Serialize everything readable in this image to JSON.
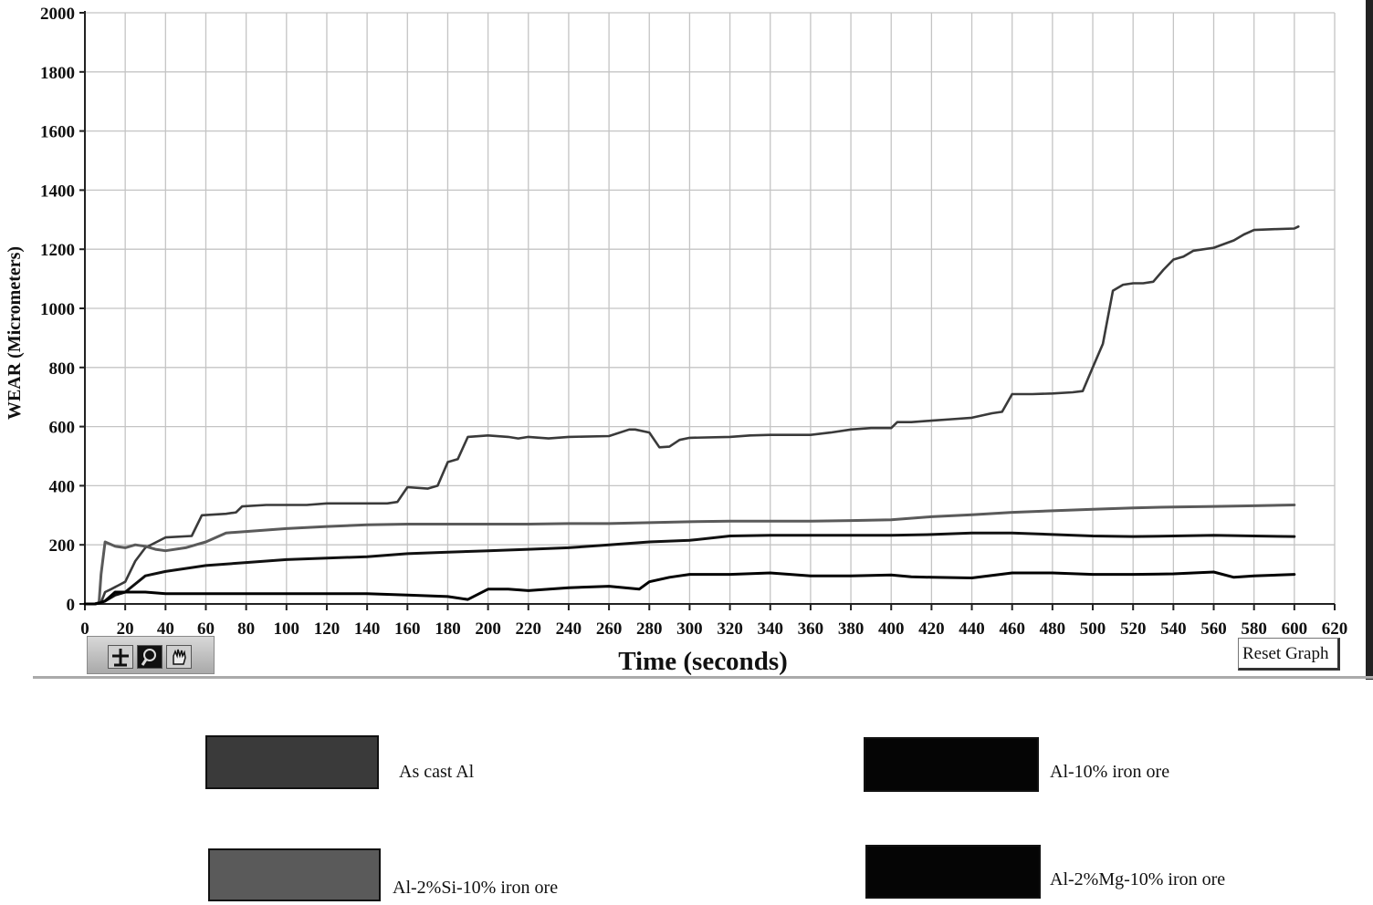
{
  "chart_data": {
    "type": "line",
    "title": "",
    "xlabel": "Time (seconds)",
    "ylabel": "WEAR (Micrometers)",
    "xlim": [
      0,
      620
    ],
    "ylim": [
      0,
      2000
    ],
    "xticks": [
      0,
      20,
      40,
      60,
      80,
      100,
      120,
      140,
      160,
      180,
      200,
      220,
      240,
      260,
      280,
      300,
      320,
      340,
      360,
      380,
      400,
      420,
      440,
      460,
      480,
      500,
      520,
      540,
      560,
      580,
      600,
      620
    ],
    "yticks": [
      0,
      200,
      400,
      600,
      800,
      1000,
      1200,
      1400,
      1600,
      1800,
      2000
    ],
    "grid": true,
    "legend_position": "bottom",
    "series": [
      {
        "name": "As cast Al",
        "color": "#3a3a3a",
        "x": [
          0,
          5,
          8,
          10,
          13,
          20,
          25,
          30,
          40,
          53,
          58,
          70,
          75,
          78,
          90,
          110,
          120,
          130,
          150,
          155,
          160,
          170,
          175,
          180,
          185,
          190,
          200,
          210,
          215,
          220,
          230,
          240,
          260,
          270,
          273,
          280,
          285,
          290,
          295,
          300,
          320,
          330,
          340,
          360,
          370,
          380,
          390,
          400,
          403,
          410,
          420,
          430,
          440,
          450,
          455,
          460,
          470,
          480,
          490,
          495,
          500,
          505,
          510,
          515,
          520,
          525,
          530,
          535,
          540,
          545,
          550,
          560,
          570,
          575,
          580,
          590,
          600,
          602
        ],
        "y": [
          0,
          0,
          5,
          40,
          50,
          75,
          145,
          190,
          225,
          230,
          300,
          305,
          310,
          330,
          335,
          335,
          340,
          340,
          340,
          345,
          395,
          390,
          400,
          480,
          490,
          565,
          570,
          565,
          560,
          565,
          560,
          565,
          568,
          590,
          590,
          580,
          530,
          532,
          555,
          562,
          565,
          570,
          572,
          572,
          580,
          590,
          595,
          595,
          615,
          615,
          620,
          625,
          630,
          645,
          650,
          710,
          710,
          712,
          716,
          720,
          800,
          880,
          1060,
          1080,
          1085,
          1085,
          1090,
          1130,
          1165,
          1175,
          1195,
          1205,
          1230,
          1250,
          1265,
          1268,
          1270,
          1277
        ]
      },
      {
        "name": "Al-10% iron ore",
        "color": "#111111",
        "x": [
          0,
          5,
          8,
          10,
          15,
          20,
          30,
          40,
          60,
          80,
          100,
          120,
          140,
          160,
          180,
          200,
          220,
          240,
          260,
          280,
          300,
          320,
          340,
          360,
          380,
          400,
          420,
          440,
          460,
          480,
          500,
          520,
          540,
          560,
          580,
          600
        ],
        "y": [
          0,
          0,
          5,
          10,
          30,
          40,
          95,
          110,
          130,
          140,
          150,
          155,
          160,
          170,
          175,
          180,
          185,
          190,
          200,
          210,
          215,
          230,
          232,
          232,
          232,
          232,
          235,
          240,
          240,
          235,
          230,
          228,
          230,
          232,
          230,
          228
        ]
      },
      {
        "name": "Al-2%Si-10% iron ore",
        "color": "#5a5a5a",
        "x": [
          0,
          5,
          7,
          8,
          10,
          15,
          20,
          25,
          30,
          35,
          40,
          50,
          55,
          60,
          70,
          80,
          100,
          120,
          140,
          160,
          180,
          200,
          220,
          240,
          260,
          280,
          300,
          320,
          340,
          360,
          380,
          400,
          420,
          440,
          460,
          480,
          500,
          520,
          540,
          560,
          580,
          600
        ],
        "y": [
          0,
          0,
          5,
          100,
          210,
          195,
          190,
          200,
          195,
          185,
          180,
          190,
          200,
          210,
          240,
          245,
          255,
          262,
          268,
          270,
          270,
          270,
          270,
          272,
          272,
          275,
          278,
          280,
          280,
          280,
          282,
          285,
          295,
          302,
          310,
          315,
          320,
          325,
          328,
          330,
          332,
          335
        ]
      },
      {
        "name": "Al-2%Mg-10% iron ore",
        "color": "#000000",
        "x": [
          0,
          5,
          8,
          10,
          15,
          20,
          30,
          40,
          60,
          80,
          100,
          120,
          140,
          160,
          180,
          185,
          190,
          200,
          210,
          220,
          240,
          260,
          275,
          280,
          290,
          295,
          300,
          320,
          340,
          360,
          380,
          400,
          410,
          420,
          440,
          460,
          480,
          500,
          520,
          540,
          560,
          570,
          580,
          600
        ],
        "y": [
          0,
          0,
          5,
          10,
          40,
          40,
          40,
          35,
          35,
          35,
          35,
          35,
          35,
          30,
          25,
          20,
          15,
          50,
          50,
          45,
          55,
          60,
          50,
          75,
          90,
          95,
          100,
          100,
          105,
          95,
          95,
          98,
          92,
          90,
          88,
          105,
          105,
          100,
          100,
          102,
          108,
          90,
          95,
          100
        ]
      }
    ]
  },
  "toolbar": {
    "tools": [
      "crosshair-icon",
      "zoom-icon",
      "pan-hand-icon"
    ]
  },
  "reset_button": {
    "label": "Reset Graph"
  }
}
